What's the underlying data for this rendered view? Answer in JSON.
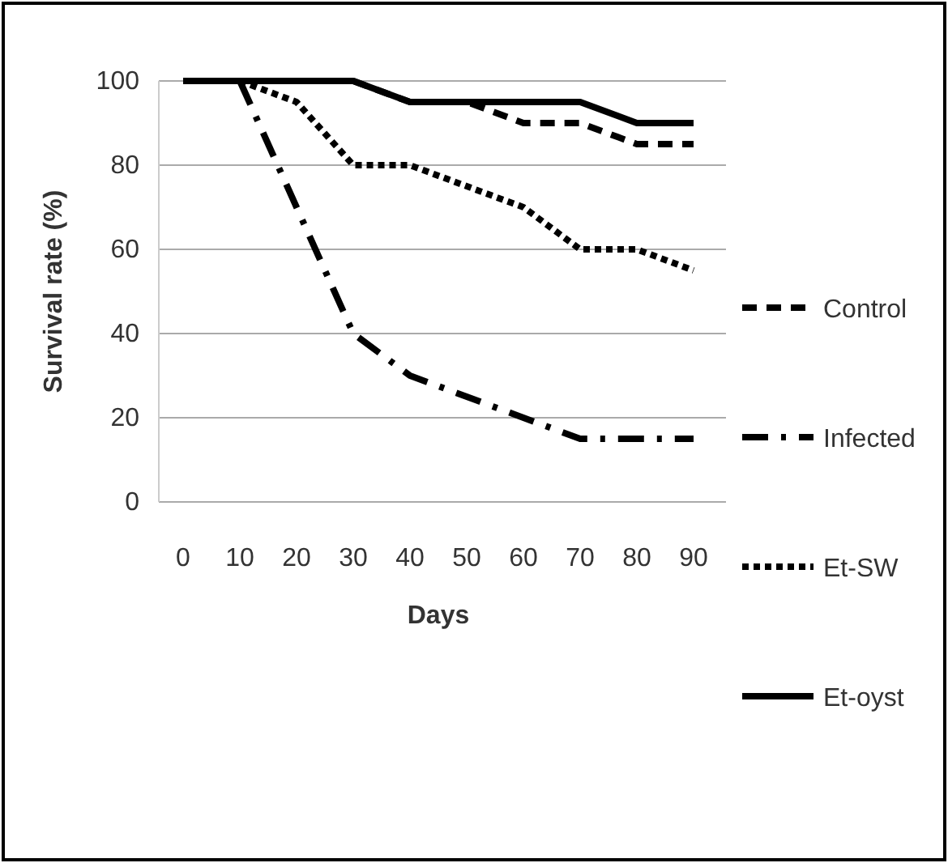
{
  "chart_data": {
    "type": "line",
    "xlabel": "Days",
    "ylabel": "Survival rate (%)",
    "categories": [
      "0",
      "10",
      "20",
      "30",
      "40",
      "50",
      "60",
      "70",
      "80",
      "90"
    ],
    "ylim": [
      0,
      100
    ],
    "yticks": [
      0,
      20,
      40,
      60,
      80,
      100
    ],
    "grid": "y",
    "legend": "right",
    "marker": "none",
    "series": [
      {
        "name": "Control",
        "color": "#000000",
        "line_style": "dashed",
        "values": [
          100,
          100,
          100,
          100,
          95,
          95,
          90,
          90,
          85,
          85
        ]
      },
      {
        "name": "Infected",
        "color": "#000000",
        "line_style": "dashdot",
        "values": [
          100,
          100,
          70,
          40,
          30,
          25,
          20,
          15,
          15,
          15
        ]
      },
      {
        "name": "Et-SW",
        "color": "#000000",
        "line_style": "dotted",
        "values": [
          100,
          100,
          95,
          80,
          80,
          75,
          70,
          60,
          60,
          55
        ]
      },
      {
        "name": "Et-oyst",
        "color": "#000000",
        "line_style": "solid",
        "values": [
          100,
          100,
          100,
          100,
          95,
          95,
          95,
          95,
          90,
          90
        ]
      }
    ]
  }
}
